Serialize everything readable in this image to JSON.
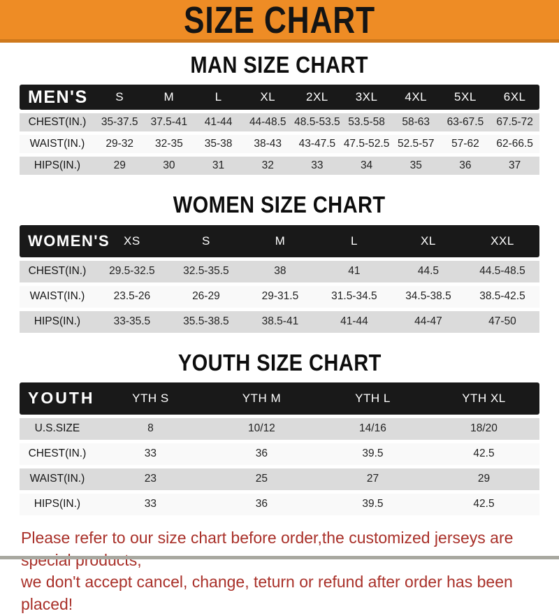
{
  "banner": {
    "title": "SIZE CHART",
    "bg_color": "#EE8C25",
    "text_color": "#141414"
  },
  "sections": [
    {
      "id": "men",
      "heading": "MAN SIZE CHART",
      "header_label": "MEN'S",
      "columns": [
        "S",
        "M",
        "L",
        "XL",
        "2XL",
        "3XL",
        "4XL",
        "5XL",
        "6XL"
      ],
      "rows": [
        {
          "label": "CHEST(IN.)",
          "values": [
            "35-37.5",
            "37.5-41",
            "41-44",
            "44-48.5",
            "48.5-53.5",
            "53.5-58",
            "58-63",
            "63-67.5",
            "67.5-72"
          ]
        },
        {
          "label": "WAIST(IN.)",
          "values": [
            "29-32",
            "32-35",
            "35-38",
            "38-43",
            "43-47.5",
            "47.5-52.5",
            "52.5-57",
            "57-62",
            "62-66.5"
          ]
        },
        {
          "label": "HIPS(IN.)",
          "values": [
            "29",
            "30",
            "31",
            "32",
            "33",
            "34",
            "35",
            "36",
            "37"
          ]
        }
      ]
    },
    {
      "id": "women",
      "heading": "WOMEN SIZE CHART",
      "header_label": "WOMEN'S",
      "columns": [
        "XS",
        "S",
        "M",
        "L",
        "XL",
        "XXL"
      ],
      "rows": [
        {
          "label": "CHEST(IN.)",
          "values": [
            "29.5-32.5",
            "32.5-35.5",
            "38",
            "41",
            "44.5",
            "44.5-48.5"
          ]
        },
        {
          "label": "WAIST(IN.)",
          "values": [
            "23.5-26",
            "26-29",
            "29-31.5",
            "31.5-34.5",
            "34.5-38.5",
            "38.5-42.5"
          ]
        },
        {
          "label": "HIPS(IN.)",
          "values": [
            "33-35.5",
            "35.5-38.5",
            "38.5-41",
            "41-44",
            "44-47",
            "47-50"
          ]
        }
      ]
    },
    {
      "id": "youth",
      "heading": "YOUTH SIZE CHART",
      "header_label": "YOUTH",
      "columns": [
        "YTH S",
        "YTH M",
        "YTH L",
        "YTH XL"
      ],
      "rows": [
        {
          "label": "U.S.SIZE",
          "values": [
            "8",
            "10/12",
            "14/16",
            "18/20"
          ]
        },
        {
          "label": "CHEST(IN.)",
          "values": [
            "33",
            "36",
            "39.5",
            "42.5"
          ]
        },
        {
          "label": "WAIST(IN.)",
          "values": [
            "23",
            "25",
            "27",
            "29"
          ]
        },
        {
          "label": "HIPS(IN.)",
          "values": [
            "33",
            "36",
            "39.5",
            "42.5"
          ]
        }
      ]
    }
  ],
  "footer_note": {
    "line1": "Please refer to our size chart before order,the customized jerseys are special products,",
    "line2": "we don't accept cancel, change, teturn or refund after order has been placed!",
    "color": "#A93029"
  },
  "colors": {
    "banner_orange": "#EE8C25",
    "banner_border": "#CF791C",
    "header_bar_black": "#191919",
    "row_gray": "#DBDBDB",
    "row_white": "#F9F9F9",
    "note_red": "#A93029"
  }
}
